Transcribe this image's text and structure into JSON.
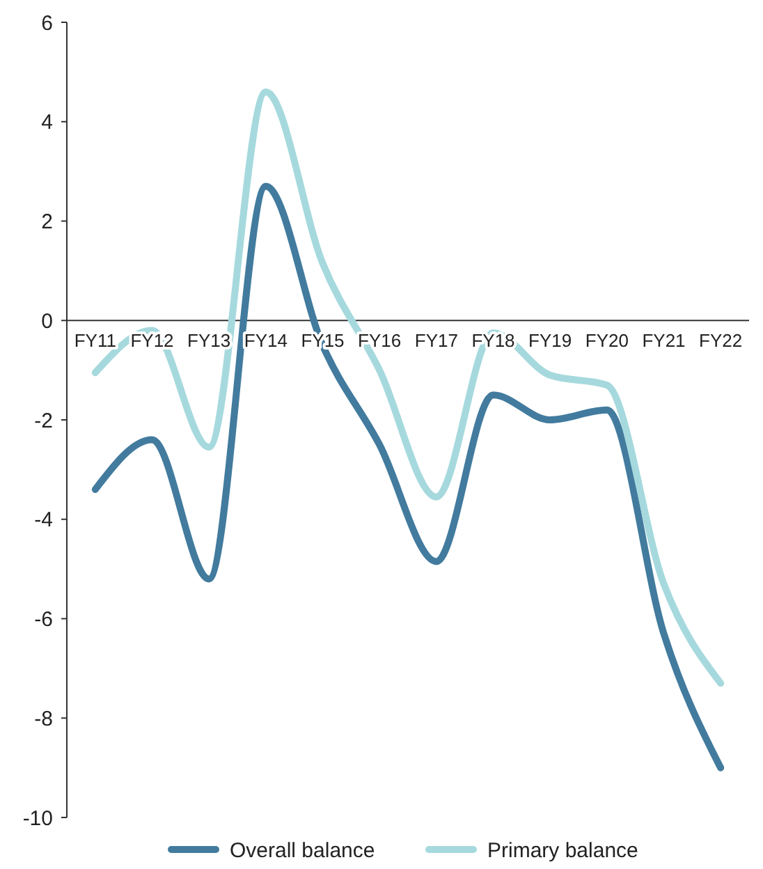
{
  "chart_data": {
    "type": "line",
    "categories": [
      "FY11",
      "FY12",
      "FY13",
      "FY14",
      "FY15",
      "FY16",
      "FY17",
      "FY18",
      "FY19",
      "FY20",
      "FY21",
      "FY22"
    ],
    "series": [
      {
        "name": "Overall balance",
        "color": "#427b9e",
        "values": [
          -3.4,
          -2.4,
          -5.2,
          2.7,
          -0.5,
          -2.5,
          -4.85,
          -1.5,
          -2.0,
          -1.8,
          -6.3,
          -9.0
        ]
      },
      {
        "name": "Primary balance",
        "color": "#a6d9dd",
        "values": [
          -1.05,
          -0.2,
          -2.55,
          4.6,
          1.15,
          -1.0,
          -3.55,
          -0.25,
          -1.1,
          -1.3,
          -5.3,
          -7.3
        ]
      }
    ],
    "ylim": [
      -10,
      6
    ],
    "yticks": [
      -10,
      -8,
      -6,
      -4,
      -2,
      0,
      2,
      4,
      6
    ],
    "grid": false,
    "legend": "bottom",
    "marker": "none",
    "line_style": "solid"
  }
}
